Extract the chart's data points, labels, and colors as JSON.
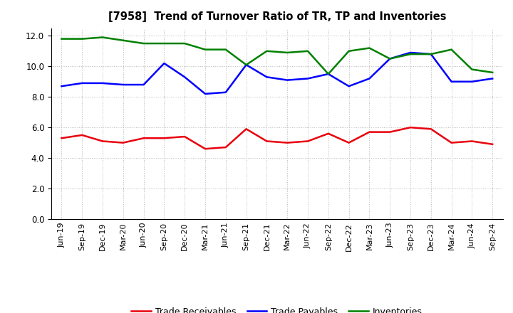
{
  "title": "[7958]  Trend of Turnover Ratio of TR, TP and Inventories",
  "x_labels": [
    "Jun-19",
    "Sep-19",
    "Dec-19",
    "Mar-20",
    "Jun-20",
    "Sep-20",
    "Dec-20",
    "Mar-21",
    "Jun-21",
    "Sep-21",
    "Dec-21",
    "Mar-22",
    "Jun-22",
    "Sep-22",
    "Dec-22",
    "Mar-23",
    "Jun-23",
    "Sep-23",
    "Dec-23",
    "Mar-24",
    "Jun-24",
    "Sep-24"
  ],
  "trade_receivables": [
    5.3,
    5.5,
    5.1,
    5.0,
    5.3,
    5.3,
    5.4,
    4.6,
    4.7,
    5.9,
    5.1,
    5.0,
    5.1,
    5.6,
    5.0,
    5.7,
    5.7,
    6.0,
    5.9,
    5.0,
    5.1,
    4.9
  ],
  "trade_payables": [
    8.7,
    8.9,
    8.9,
    8.8,
    8.8,
    10.2,
    9.3,
    8.2,
    8.3,
    10.1,
    9.3,
    9.1,
    9.2,
    9.5,
    8.7,
    9.2,
    10.5,
    10.9,
    10.8,
    9.0,
    9.0,
    9.2
  ],
  "inventories": [
    11.8,
    11.8,
    11.9,
    11.7,
    11.5,
    11.5,
    11.5,
    11.1,
    11.1,
    10.1,
    11.0,
    10.9,
    11.0,
    9.5,
    11.0,
    11.2,
    10.5,
    10.8,
    10.8,
    11.1,
    9.8,
    9.6
  ],
  "ylim": [
    0,
    12.5
  ],
  "yticks": [
    0.0,
    2.0,
    4.0,
    6.0,
    8.0,
    10.0,
    12.0
  ],
  "color_tr": "#e8000d",
  "color_tp": "#0000ff",
  "color_inv": "#008000",
  "legend_labels": [
    "Trade Receivables",
    "Trade Payables",
    "Inventories"
  ],
  "background_color": "#ffffff",
  "grid_color": "#b0b0b0"
}
